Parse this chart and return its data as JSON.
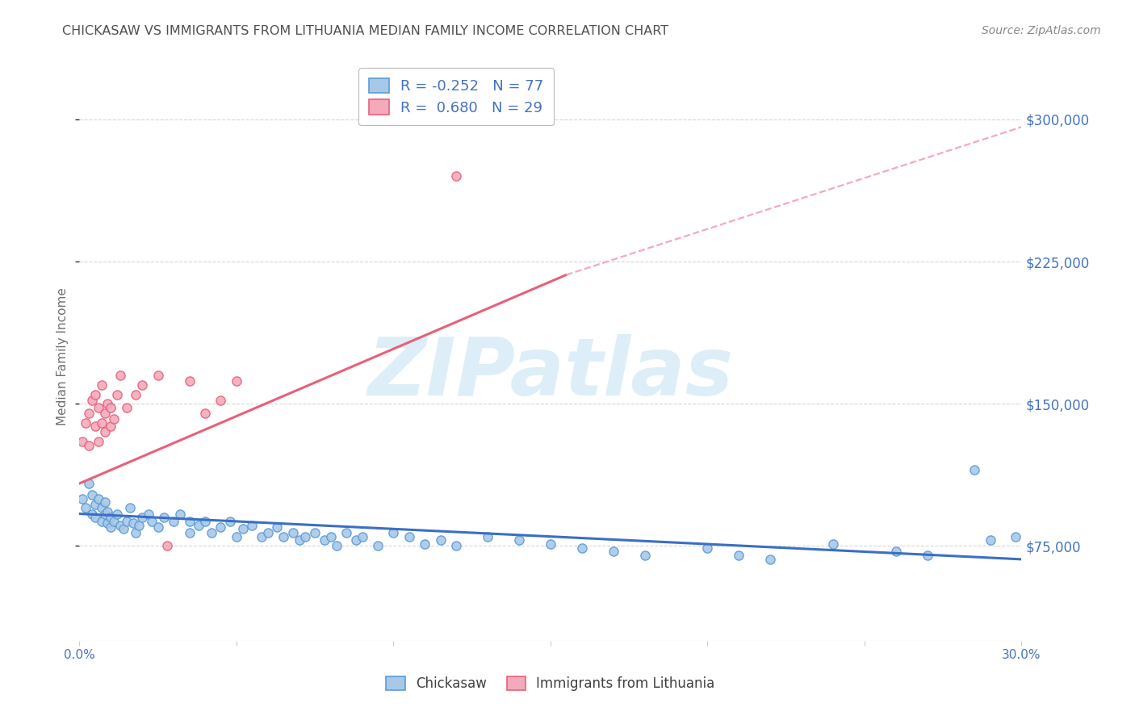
{
  "title": "CHICKASAW VS IMMIGRANTS FROM LITHUANIA MEDIAN FAMILY INCOME CORRELATION CHART",
  "source_text": "Source: ZipAtlas.com",
  "ylabel": "Median Family Income",
  "xlim": [
    0.0,
    0.3
  ],
  "ylim": [
    25000,
    325000
  ],
  "yticks": [
    75000,
    150000,
    225000,
    300000
  ],
  "ytick_labels_right": [
    "$75,000",
    "$150,000",
    "$225,000",
    "$300,000"
  ],
  "chickasaw_label": "Chickasaw",
  "lithuania_label": "Immigrants from Lithuania",
  "blue_scatter_color": "#a8c8e8",
  "blue_edge_color": "#5b9bd5",
  "pink_scatter_color": "#f4aabb",
  "pink_edge_color": "#e8607a",
  "blue_line_color": "#3a6fc4",
  "pink_line_color": "#e8607a",
  "pink_dash_color": "#f4aabb",
  "watermark_color": "#ddeef8",
  "title_color": "#505050",
  "axis_label_color": "#4472c4",
  "grid_color": "#cccccc",
  "blue_trend": [
    0.0,
    92000,
    0.3,
    68000
  ],
  "pink_trend_solid": [
    0.0,
    108000,
    0.155,
    218000
  ],
  "pink_trend_dashed": [
    0.155,
    218000,
    0.3,
    296000
  ],
  "blue_x": [
    0.001,
    0.002,
    0.003,
    0.004,
    0.004,
    0.005,
    0.005,
    0.006,
    0.007,
    0.007,
    0.008,
    0.008,
    0.009,
    0.009,
    0.01,
    0.01,
    0.011,
    0.012,
    0.013,
    0.014,
    0.015,
    0.016,
    0.017,
    0.018,
    0.019,
    0.02,
    0.022,
    0.023,
    0.025,
    0.027,
    0.03,
    0.032,
    0.035,
    0.035,
    0.038,
    0.04,
    0.042,
    0.045,
    0.048,
    0.05,
    0.052,
    0.055,
    0.058,
    0.06,
    0.063,
    0.065,
    0.068,
    0.07,
    0.072,
    0.075,
    0.078,
    0.08,
    0.082,
    0.085,
    0.088,
    0.09,
    0.095,
    0.1,
    0.105,
    0.11,
    0.115,
    0.12,
    0.13,
    0.14,
    0.15,
    0.16,
    0.17,
    0.18,
    0.2,
    0.21,
    0.22,
    0.24,
    0.26,
    0.27,
    0.285,
    0.29,
    0.298
  ],
  "blue_y": [
    100000,
    95000,
    108000,
    92000,
    102000,
    97000,
    90000,
    100000,
    95000,
    88000,
    92000,
    98000,
    87000,
    93000,
    85000,
    90000,
    88000,
    92000,
    86000,
    84000,
    88000,
    95000,
    87000,
    82000,
    86000,
    90000,
    92000,
    88000,
    85000,
    90000,
    88000,
    92000,
    88000,
    82000,
    86000,
    88000,
    82000,
    85000,
    88000,
    80000,
    84000,
    86000,
    80000,
    82000,
    85000,
    80000,
    82000,
    78000,
    80000,
    82000,
    78000,
    80000,
    75000,
    82000,
    78000,
    80000,
    75000,
    82000,
    80000,
    76000,
    78000,
    75000,
    80000,
    78000,
    76000,
    74000,
    72000,
    70000,
    74000,
    70000,
    68000,
    76000,
    72000,
    70000,
    115000,
    78000,
    80000
  ],
  "pink_x": [
    0.001,
    0.002,
    0.003,
    0.003,
    0.004,
    0.005,
    0.005,
    0.006,
    0.006,
    0.007,
    0.007,
    0.008,
    0.008,
    0.009,
    0.01,
    0.01,
    0.011,
    0.012,
    0.013,
    0.015,
    0.018,
    0.02,
    0.025,
    0.028,
    0.035,
    0.04,
    0.045,
    0.05,
    0.12
  ],
  "pink_y": [
    130000,
    140000,
    145000,
    128000,
    152000,
    138000,
    155000,
    130000,
    148000,
    140000,
    160000,
    145000,
    135000,
    150000,
    148000,
    138000,
    142000,
    155000,
    165000,
    148000,
    155000,
    160000,
    165000,
    75000,
    162000,
    145000,
    152000,
    162000,
    270000
  ]
}
